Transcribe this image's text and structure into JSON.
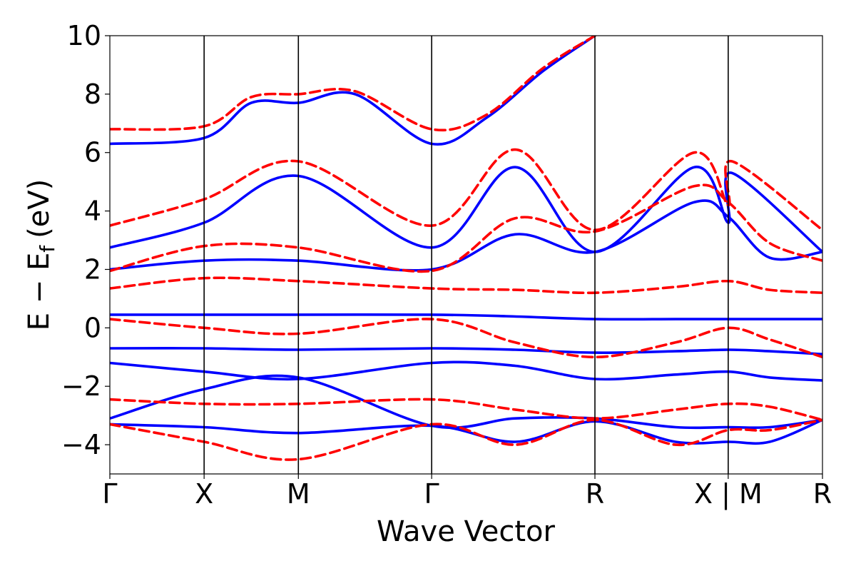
{
  "chart_data": {
    "type": "line",
    "xlabel": "Wave Vector",
    "ylabel": {
      "main": "E − E",
      "sub": "f",
      "unit": "(eV)"
    },
    "ylim": [
      -5,
      10
    ],
    "yticks": [
      -4,
      -2,
      0,
      2,
      4,
      6,
      8,
      10
    ],
    "ytick_labels": [
      "−4",
      "−2",
      "0",
      "2",
      "4",
      "6",
      "8",
      "10"
    ],
    "kpath": [
      {
        "label": "Γ",
        "x": 0.0
      },
      {
        "label": "X",
        "x": 0.5
      },
      {
        "label": "M",
        "x": 1.0
      },
      {
        "label": "Γ",
        "x": 1.707
      },
      {
        "label": "R",
        "x": 2.573
      },
      {
        "label": "X | M",
        "x": 3.28
      },
      {
        "label": "R",
        "x": 3.78
      }
    ],
    "xlim": [
      0.0,
      3.78
    ],
    "grid": false,
    "legend": "none",
    "colors": {
      "blue": "#0000ff",
      "red": "#ff0000"
    },
    "series": [
      {
        "style": "solid",
        "color": "blue",
        "points": [
          [
            0,
            6.3
          ],
          [
            0.5,
            6.5
          ],
          [
            0.75,
            7.7
          ],
          [
            1.0,
            7.7
          ],
          [
            1.3,
            8.0
          ],
          [
            1.707,
            6.3
          ],
          [
            2.0,
            7.2
          ],
          [
            2.3,
            8.8
          ],
          [
            2.573,
            10.0
          ]
        ]
      },
      {
        "style": "solid",
        "color": "blue",
        "points": [
          [
            0,
            2.75
          ],
          [
            0.5,
            3.6
          ],
          [
            1.0,
            5.2
          ],
          [
            1.707,
            2.75
          ],
          [
            2.15,
            5.5
          ],
          [
            2.573,
            2.6
          ],
          [
            3.1,
            5.5
          ],
          [
            3.28,
            3.6
          ],
          [
            3.3,
            5.3
          ],
          [
            3.78,
            2.6
          ]
        ]
      },
      {
        "style": "solid",
        "color": "blue",
        "points": [
          [
            0,
            2.0
          ],
          [
            0.5,
            2.3
          ],
          [
            1.0,
            2.3
          ],
          [
            1.707,
            2.0
          ],
          [
            2.15,
            3.2
          ],
          [
            2.573,
            2.6
          ],
          [
            3.1,
            4.3
          ],
          [
            3.28,
            3.8
          ],
          [
            3.5,
            2.4
          ],
          [
            3.78,
            2.6
          ]
        ]
      },
      {
        "style": "solid",
        "color": "blue",
        "points": [
          [
            0,
            0.45
          ],
          [
            0.5,
            0.45
          ],
          [
            1.0,
            0.45
          ],
          [
            1.707,
            0.45
          ],
          [
            2.1,
            0.4
          ],
          [
            2.573,
            0.3
          ],
          [
            3.0,
            0.3
          ],
          [
            3.28,
            0.3
          ],
          [
            3.5,
            0.3
          ],
          [
            3.78,
            0.3
          ]
        ]
      },
      {
        "style": "solid",
        "color": "blue",
        "points": [
          [
            0,
            -0.7
          ],
          [
            0.5,
            -0.7
          ],
          [
            1.0,
            -0.75
          ],
          [
            1.707,
            -0.7
          ],
          [
            2.15,
            -0.75
          ],
          [
            2.573,
            -0.85
          ],
          [
            3.0,
            -0.8
          ],
          [
            3.28,
            -0.75
          ],
          [
            3.5,
            -0.8
          ],
          [
            3.78,
            -0.9
          ]
        ]
      },
      {
        "style": "solid",
        "color": "blue",
        "points": [
          [
            0,
            -1.2
          ],
          [
            0.5,
            -1.5
          ],
          [
            1.0,
            -1.75
          ],
          [
            1.707,
            -1.2
          ],
          [
            2.15,
            -1.3
          ],
          [
            2.573,
            -1.75
          ],
          [
            3.0,
            -1.6
          ],
          [
            3.28,
            -1.5
          ],
          [
            3.5,
            -1.7
          ],
          [
            3.78,
            -1.8
          ]
        ]
      },
      {
        "style": "solid",
        "color": "blue",
        "points": [
          [
            0,
            -3.1
          ],
          [
            0.5,
            -2.1
          ],
          [
            1.0,
            -1.7
          ],
          [
            1.707,
            -3.35
          ],
          [
            2.15,
            -3.1
          ],
          [
            2.573,
            -3.1
          ],
          [
            3.0,
            -3.4
          ],
          [
            3.28,
            -3.4
          ],
          [
            3.5,
            -3.4
          ],
          [
            3.78,
            -3.15
          ]
        ]
      },
      {
        "style": "solid",
        "color": "blue",
        "points": [
          [
            0,
            -3.3
          ],
          [
            0.5,
            -3.4
          ],
          [
            1.0,
            -3.6
          ],
          [
            1.707,
            -3.35
          ],
          [
            2.15,
            -3.9
          ],
          [
            2.573,
            -3.2
          ],
          [
            3.0,
            -3.9
          ],
          [
            3.28,
            -3.9
          ],
          [
            3.5,
            -3.9
          ],
          [
            3.78,
            -3.15
          ]
        ]
      },
      {
        "style": "dashed",
        "color": "red",
        "points": [
          [
            0,
            6.8
          ],
          [
            0.5,
            6.9
          ],
          [
            0.75,
            7.9
          ],
          [
            1.0,
            8.0
          ],
          [
            1.3,
            8.1
          ],
          [
            1.707,
            6.8
          ],
          [
            2.0,
            7.3
          ],
          [
            2.3,
            8.9
          ],
          [
            2.573,
            10.0
          ]
        ]
      },
      {
        "style": "dashed",
        "color": "red",
        "points": [
          [
            0,
            3.5
          ],
          [
            0.5,
            4.4
          ],
          [
            1.0,
            5.7
          ],
          [
            1.707,
            3.5
          ],
          [
            2.15,
            6.1
          ],
          [
            2.573,
            3.35
          ],
          [
            3.1,
            6.0
          ],
          [
            3.28,
            4.2
          ],
          [
            3.3,
            5.7
          ],
          [
            3.78,
            3.35
          ]
        ]
      },
      {
        "style": "dashed",
        "color": "red",
        "points": [
          [
            0,
            1.95
          ],
          [
            0.5,
            2.8
          ],
          [
            1.0,
            2.75
          ],
          [
            1.707,
            1.95
          ],
          [
            2.15,
            3.75
          ],
          [
            2.573,
            3.3
          ],
          [
            3.1,
            4.85
          ],
          [
            3.28,
            4.3
          ],
          [
            3.5,
            2.9
          ],
          [
            3.78,
            2.3
          ]
        ]
      },
      {
        "style": "dashed",
        "color": "red",
        "points": [
          [
            0,
            1.35
          ],
          [
            0.5,
            1.7
          ],
          [
            1.0,
            1.6
          ],
          [
            1.707,
            1.35
          ],
          [
            2.15,
            1.3
          ],
          [
            2.573,
            1.2
          ],
          [
            3.0,
            1.4
          ],
          [
            3.28,
            1.6
          ],
          [
            3.5,
            1.3
          ],
          [
            3.78,
            1.2
          ]
        ]
      },
      {
        "style": "dashed",
        "color": "red",
        "points": [
          [
            0,
            0.3
          ],
          [
            0.5,
            0.0
          ],
          [
            1.0,
            -0.2
          ],
          [
            1.707,
            0.3
          ],
          [
            2.15,
            -0.5
          ],
          [
            2.573,
            -1.0
          ],
          [
            3.0,
            -0.5
          ],
          [
            3.28,
            0.0
          ],
          [
            3.5,
            -0.4
          ],
          [
            3.78,
            -1.0
          ]
        ]
      },
      {
        "style": "dashed",
        "color": "red",
        "points": [
          [
            0,
            -2.45
          ],
          [
            0.5,
            -2.6
          ],
          [
            1.0,
            -2.6
          ],
          [
            1.707,
            -2.45
          ],
          [
            2.15,
            -2.8
          ],
          [
            2.573,
            -3.1
          ],
          [
            3.0,
            -2.8
          ],
          [
            3.28,
            -2.6
          ],
          [
            3.5,
            -2.7
          ],
          [
            3.78,
            -3.15
          ]
        ]
      },
      {
        "style": "dashed",
        "color": "red",
        "points": [
          [
            0,
            -3.3
          ],
          [
            0.5,
            -3.9
          ],
          [
            1.0,
            -4.5
          ],
          [
            1.707,
            -3.3
          ],
          [
            2.15,
            -4.0
          ],
          [
            2.573,
            -3.15
          ],
          [
            3.0,
            -4.0
          ],
          [
            3.28,
            -3.5
          ],
          [
            3.5,
            -3.5
          ],
          [
            3.78,
            -3.15
          ]
        ]
      }
    ]
  }
}
